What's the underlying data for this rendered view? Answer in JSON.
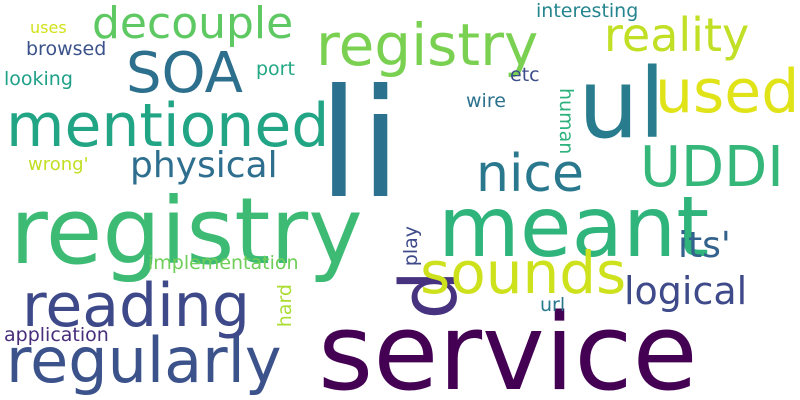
{
  "words": [
    {
      "text": "service",
      "color": "#440154"
    },
    {
      "text": "li",
      "color": "#2c728e"
    },
    {
      "text": "registry",
      "color": "#3dbb74"
    },
    {
      "text": "meant",
      "color": "#2fb47c"
    },
    {
      "text": "p",
      "color": "#46327e"
    },
    {
      "text": "ul",
      "color": "#287c8e"
    },
    {
      "text": "registry",
      "color": "#7ad151"
    },
    {
      "text": "mentioned",
      "color": "#21a585"
    },
    {
      "text": "regularly",
      "color": "#3b528b"
    },
    {
      "text": "reading",
      "color": "#3e4989"
    },
    {
      "text": "used",
      "color": "#dfe318"
    },
    {
      "text": "sounds",
      "color": "#cde11d"
    },
    {
      "text": "SOA",
      "color": "#2d708e"
    },
    {
      "text": "UDDI",
      "color": "#35b779"
    },
    {
      "text": "decouple",
      "color": "#5ec962"
    },
    {
      "text": "reality",
      "color": "#c0df25"
    },
    {
      "text": "nice",
      "color": "#2a788e"
    },
    {
      "text": "physical",
      "color": "#2e6e8e"
    },
    {
      "text": "logical",
      "color": "#3e4a89"
    },
    {
      "text": "its'",
      "color": "#33638d"
    },
    {
      "text": "implementation",
      "color": "#6ece58"
    },
    {
      "text": "interesting",
      "color": "#25858e"
    },
    {
      "text": "application",
      "color": "#472d7b"
    },
    {
      "text": "browsed",
      "color": "#3b528b"
    },
    {
      "text": "looking",
      "color": "#1fa088"
    },
    {
      "text": "port",
      "color": "#22a884"
    },
    {
      "text": "etc",
      "color": "#3d4d8a"
    },
    {
      "text": "wire",
      "color": "#2c728e"
    },
    {
      "text": "human",
      "color": "#2db27d"
    },
    {
      "text": "uses",
      "color": "#d2e21b"
    },
    {
      "text": "wrong'",
      "color": "#c2df23"
    },
    {
      "text": "play",
      "color": "#3e4989"
    },
    {
      "text": "hard",
      "color": "#aadc32"
    },
    {
      "text": "url",
      "color": "#2a788e"
    }
  ]
}
